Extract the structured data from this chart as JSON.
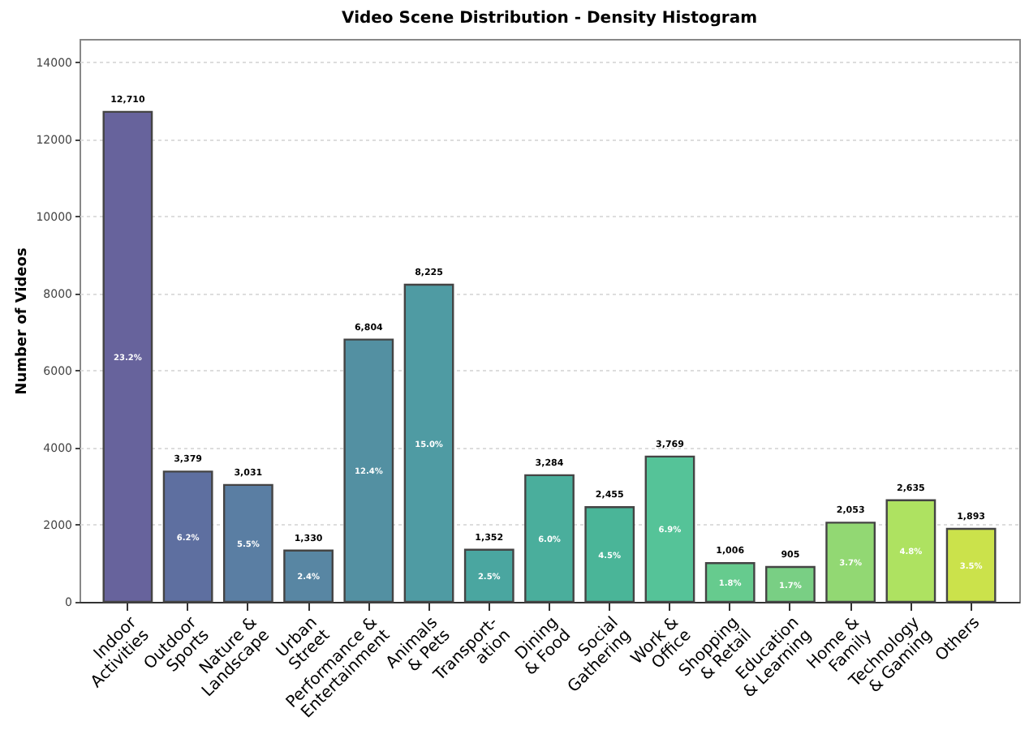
{
  "chart_data": {
    "type": "bar",
    "title": "Video Scene Distribution - Density Histogram",
    "ylabel": "Number of Videos",
    "categories": [
      "Indoor\nActivities",
      "Outdoor\nSports",
      "Nature &\nLandscape",
      "Urban\nStreet",
      "Performance &\nEntertainment",
      "Animals\n& Pets",
      "Transport-\nation",
      "Dining\n& Food",
      "Social\nGathering",
      "Work &\nOffice",
      "Shopping\n& Retail",
      "Education\n& Learning",
      "Home &\nFamily",
      "Technology\n& Gaming",
      "Others"
    ],
    "values": [
      12710,
      3379,
      3031,
      1330,
      6804,
      8225,
      1352,
      3284,
      2455,
      3769,
      1006,
      905,
      2053,
      2635,
      1893
    ],
    "value_labels": [
      "12,710",
      "3,379",
      "3,031",
      "1,330",
      "6,804",
      "8,225",
      "1,352",
      "3,284",
      "2,455",
      "3,769",
      "1,006",
      "905",
      "2,053",
      "2,635",
      "1,893"
    ],
    "colors": [
      "#67639c",
      "#5e6fa0",
      "#5a7ea3",
      "#5886a3",
      "#5390a2",
      "#4f9ba3",
      "#4aa6a0",
      "#4aae9c",
      "#4ab598",
      "#55c398",
      "#66cb8e",
      "#79cf84",
      "#92d873",
      "#aee261",
      "#cbe24b"
    ],
    "annotations": [
      {
        "text": "23.2%",
        "x": "Indoor\nActivities",
        "y": 6355
      },
      {
        "text": "6.2%",
        "x": "Outdoor\nSports",
        "y": 1690
      },
      {
        "text": "5.5%",
        "x": "Nature &\nLandscape",
        "y": 1515
      },
      {
        "text": "2.4%",
        "x": "Urban\nStreet",
        "y": 665
      },
      {
        "text": "12.4%",
        "x": "Performance &\nEntertainment",
        "y": 3402
      },
      {
        "text": "15.0%",
        "x": "Animals\n& Pets",
        "y": 4112
      },
      {
        "text": "2.5%",
        "x": "Transport-\nation",
        "y": 676
      },
      {
        "text": "6.0%",
        "x": "Dining\n& Food",
        "y": 1642
      },
      {
        "text": "4.5%",
        "x": "Social\nGathering",
        "y": 1228
      },
      {
        "text": "6.9%",
        "x": "Work &\nOffice",
        "y": 1884
      },
      {
        "text": "1.8%",
        "x": "Shopping\n& Retail",
        "y": 503
      },
      {
        "text": "1.7%",
        "x": "Education\n& Learning",
        "y": 452
      },
      {
        "text": "3.7%",
        "x": "Home &\nFamily",
        "y": 1026
      },
      {
        "text": "4.8%",
        "x": "Technology\n& Gaming",
        "y": 1318
      },
      {
        "text": "3.5%",
        "x": "Others",
        "y": 946
      }
    ],
    "ylim": [
      0,
      14600
    ],
    "yticks": [
      0,
      2000,
      4000,
      6000,
      8000,
      10000,
      12000,
      14000
    ],
    "grid": "y"
  }
}
